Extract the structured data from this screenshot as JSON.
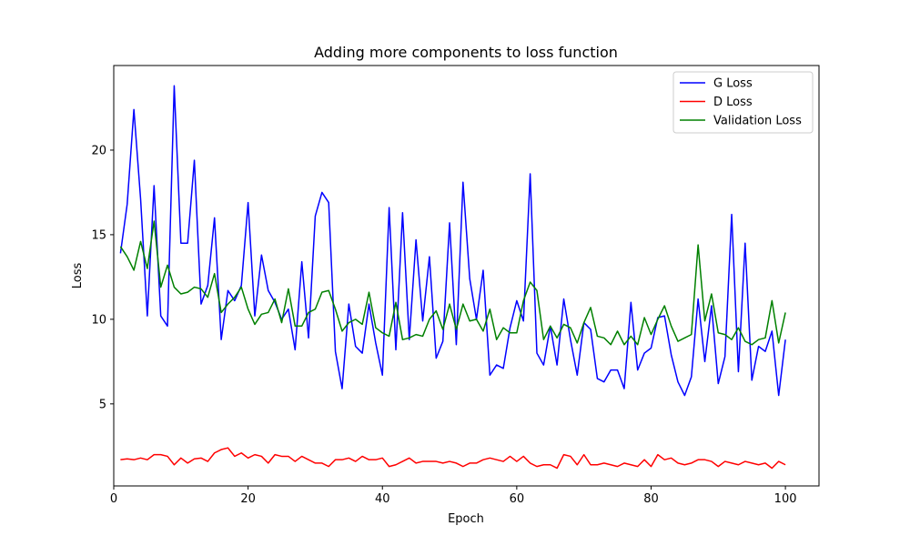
{
  "chart_data": {
    "type": "line",
    "title": "Adding more components to loss function",
    "xlabel": "Epoch",
    "ylabel": "Loss",
    "xlim": [
      0,
      105
    ],
    "ylim": [
      0.15,
      25.0
    ],
    "xticks": [
      0,
      20,
      40,
      60,
      80,
      100
    ],
    "yticks": [
      5,
      10,
      15,
      20
    ],
    "grid": false,
    "legend_position": "top-right",
    "x_start": 1,
    "x_step": 1,
    "series": [
      {
        "name": "G Loss",
        "color": "#0000ff",
        "values": [
          13.9,
          16.8,
          22.4,
          17.1,
          10.2,
          17.9,
          10.2,
          9.6,
          23.8,
          14.5,
          14.5,
          19.4,
          10.9,
          12.0,
          16.0,
          8.8,
          11.7,
          11.1,
          12.0,
          16.9,
          10.2,
          13.8,
          11.7,
          11.0,
          10.0,
          10.6,
          8.2,
          13.4,
          8.9,
          16.1,
          17.5,
          16.9,
          8.1,
          5.9,
          10.9,
          8.4,
          8.0,
          10.9,
          8.6,
          6.7,
          16.6,
          8.2,
          16.3,
          8.8,
          14.7,
          9.9,
          13.7,
          7.7,
          8.7,
          15.7,
          8.5,
          18.1,
          12.4,
          10.0,
          12.9,
          6.7,
          7.3,
          7.1,
          9.5,
          11.1,
          9.9,
          18.6,
          8.0,
          7.3,
          9.6,
          7.3,
          11.2,
          8.8,
          6.7,
          9.8,
          9.4,
          6.5,
          6.3,
          7.0,
          7.0,
          5.9,
          11.0,
          7.0,
          8.0,
          8.3,
          10.1,
          10.2,
          7.9,
          6.3,
          5.5,
          6.6,
          11.2,
          7.5,
          10.8,
          6.2,
          7.8,
          16.2,
          6.9,
          14.5,
          6.4,
          8.4,
          8.1,
          9.3,
          5.5,
          8.8
        ]
      },
      {
        "name": "D Loss",
        "color": "#ff0000",
        "values": [
          1.7,
          1.75,
          1.7,
          1.8,
          1.7,
          2.0,
          2.0,
          1.9,
          1.4,
          1.8,
          1.5,
          1.75,
          1.8,
          1.6,
          2.1,
          2.3,
          2.4,
          1.9,
          2.1,
          1.8,
          2.0,
          1.9,
          1.5,
          2.0,
          1.9,
          1.9,
          1.6,
          1.9,
          1.7,
          1.5,
          1.5,
          1.3,
          1.7,
          1.7,
          1.8,
          1.6,
          1.9,
          1.7,
          1.7,
          1.8,
          1.3,
          1.4,
          1.6,
          1.8,
          1.5,
          1.6,
          1.6,
          1.6,
          1.5,
          1.6,
          1.5,
          1.3,
          1.5,
          1.5,
          1.7,
          1.8,
          1.7,
          1.6,
          1.9,
          1.6,
          1.9,
          1.5,
          1.3,
          1.4,
          1.4,
          1.2,
          2.0,
          1.9,
          1.4,
          2.0,
          1.4,
          1.4,
          1.5,
          1.4,
          1.3,
          1.5,
          1.4,
          1.3,
          1.7,
          1.3,
          2.0,
          1.7,
          1.8,
          1.5,
          1.4,
          1.5,
          1.7,
          1.7,
          1.6,
          1.3,
          1.6,
          1.5,
          1.4,
          1.6,
          1.5,
          1.4,
          1.5,
          1.2,
          1.6,
          1.4
        ]
      },
      {
        "name": "Validation Loss",
        "color": "#008000",
        "values": [
          14.3,
          13.7,
          12.9,
          14.6,
          13.0,
          15.8,
          11.9,
          13.2,
          11.9,
          11.5,
          11.6,
          11.9,
          11.8,
          11.3,
          12.7,
          10.4,
          10.9,
          11.3,
          11.9,
          10.6,
          9.7,
          10.3,
          10.4,
          11.2,
          9.8,
          11.8,
          9.6,
          9.6,
          10.4,
          10.6,
          11.6,
          11.7,
          10.6,
          9.3,
          9.8,
          10.0,
          9.7,
          11.6,
          9.5,
          9.2,
          9.0,
          11.0,
          8.8,
          8.9,
          9.1,
          9.0,
          10.0,
          10.5,
          9.4,
          10.9,
          9.4,
          10.9,
          9.9,
          10.0,
          9.3,
          10.6,
          8.8,
          9.5,
          9.2,
          9.2,
          11.1,
          12.2,
          11.7,
          8.8,
          9.6,
          8.9,
          9.7,
          9.5,
          8.6,
          9.8,
          10.7,
          9.0,
          8.9,
          8.5,
          9.3,
          8.5,
          9.0,
          8.5,
          10.1,
          9.1,
          10.0,
          10.8,
          9.6,
          8.7,
          8.9,
          9.1,
          14.4,
          9.9,
          11.5,
          9.2,
          9.1,
          8.8,
          9.5,
          8.7,
          8.5,
          8.8,
          8.9,
          11.1,
          8.6,
          10.4
        ]
      }
    ]
  }
}
